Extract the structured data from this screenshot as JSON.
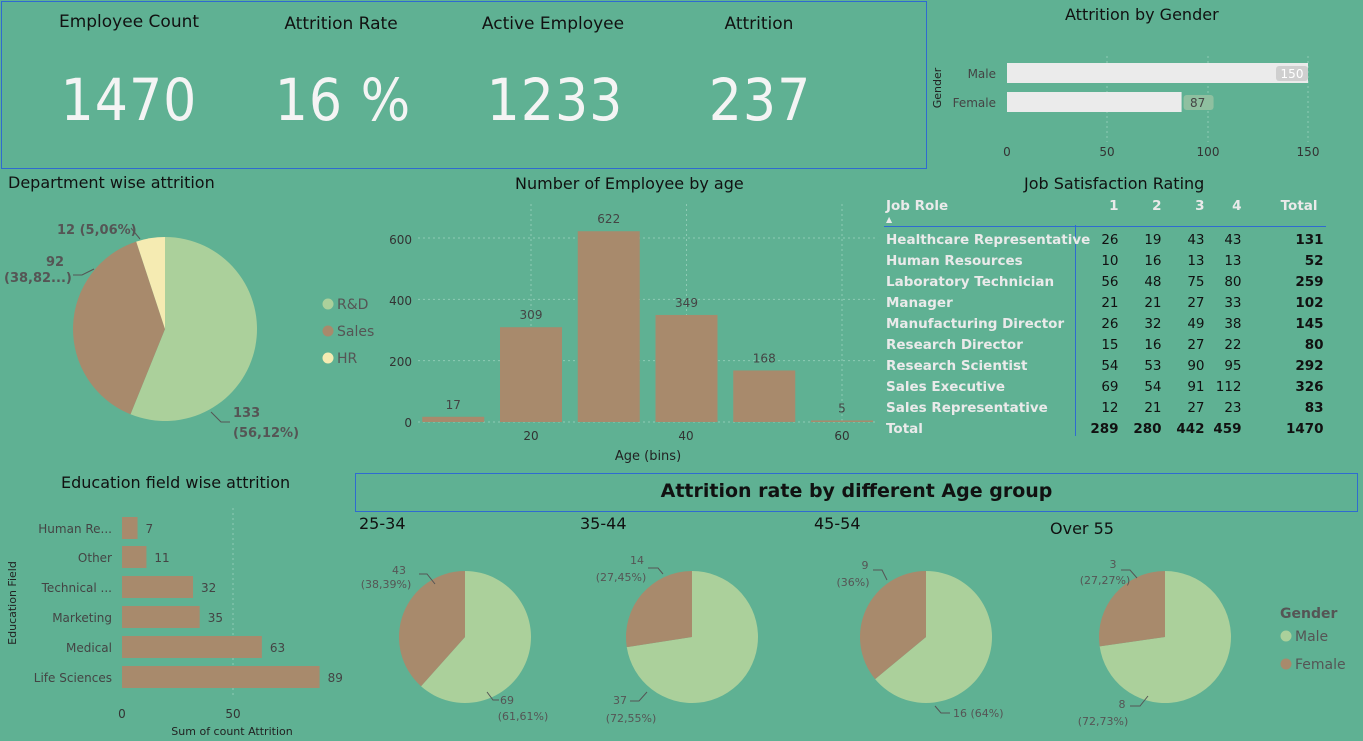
{
  "kpis": [
    {
      "title": "Employee Count",
      "value": "1470"
    },
    {
      "title": "Attrition Rate",
      "value": "16 %"
    },
    {
      "title": "Active Employee",
      "value": "1233"
    },
    {
      "title": "Attrition",
      "value": "237"
    }
  ],
  "colors": {
    "background": "#5fb193",
    "brown": "#a88a6c",
    "green": "#abd09b",
    "yellow": "#f5ebb2",
    "bar_light": "#ebebeb",
    "border": "#2f6bd0"
  },
  "gender_chart": {
    "title": "Attrition by Gender",
    "ylabel": "Gender",
    "ticks": [
      "0",
      "50",
      "100",
      "150"
    ]
  },
  "department_chart": {
    "title": "Department wise attrition",
    "slice_labels": [
      {
        "value": "133",
        "pct": "(56,12%)"
      },
      {
        "value": "92",
        "pct": "(38,82...)"
      },
      {
        "value": "12 (5,06%)",
        "pct": ""
      }
    ],
    "legend": [
      "R&D",
      "Sales",
      "HR"
    ]
  },
  "age_chart": {
    "title": "Number of Employee by age",
    "xlabel": "Age (bins)",
    "yticks": [
      "0",
      "200",
      "400",
      "600"
    ],
    "xticks": [
      "20",
      "40",
      "60"
    ]
  },
  "job_table": {
    "title": "Job Satisfaction Rating",
    "headers": [
      "Job Role",
      "1",
      "2",
      "3",
      "4",
      "Total"
    ],
    "rows": [
      [
        "Healthcare Representative",
        "26",
        "19",
        "43",
        "43",
        "131"
      ],
      [
        "Human Resources",
        "10",
        "16",
        "13",
        "13",
        "52"
      ],
      [
        "Laboratory Technician",
        "56",
        "48",
        "75",
        "80",
        "259"
      ],
      [
        "Manager",
        "21",
        "21",
        "27",
        "33",
        "102"
      ],
      [
        "Manufacturing Director",
        "26",
        "32",
        "49",
        "38",
        "145"
      ],
      [
        "Research Director",
        "15",
        "16",
        "27",
        "22",
        "80"
      ],
      [
        "Research Scientist",
        "54",
        "53",
        "90",
        "95",
        "292"
      ],
      [
        "Sales Executive",
        "69",
        "54",
        "91",
        "112",
        "326"
      ],
      [
        "Sales Representative",
        "12",
        "21",
        "27",
        "23",
        "83"
      ]
    ],
    "total_row": [
      "Total",
      "289",
      "280",
      "442",
      "459",
      "1470"
    ]
  },
  "education_chart": {
    "title": "Education field wise attrition",
    "ylabel": "Education Field",
    "xlabel": "Sum of count Attrition",
    "xticks": [
      "0",
      "50"
    ]
  },
  "age_group_section": {
    "title": "Attrition rate by different Age group",
    "legend_title": "Gender",
    "legend": [
      "Male",
      "Female"
    ],
    "groups": [
      {
        "label": "25-34",
        "female_label": "43",
        "female_pct": "(38,39%)",
        "male_label": "69",
        "male_pct": "(61,61%)"
      },
      {
        "label": "35-44",
        "female_label": "14",
        "female_pct": "(27,45%)",
        "male_label": "37",
        "male_pct": "(72,55%)"
      },
      {
        "label": "45-54",
        "female_label": "9",
        "female_pct": "(36%)",
        "male_label": "16 (64%)",
        "male_pct": ""
      },
      {
        "label": "Over 55",
        "female_label": "3",
        "female_pct": "(27,27%)",
        "male_label": "8",
        "male_pct": "(72,73%)"
      }
    ]
  },
  "chart_data": [
    {
      "type": "bar",
      "title": "Attrition by Gender",
      "ylabel": "Gender",
      "orientation": "horizontal",
      "categories": [
        "Male",
        "Female"
      ],
      "values": [
        150,
        87
      ],
      "xlim": [
        0,
        150
      ]
    },
    {
      "type": "pie",
      "title": "Department wise attrition",
      "categories": [
        "R&D",
        "Sales",
        "HR"
      ],
      "values": [
        133,
        92,
        12
      ],
      "percentages": [
        "56,12%",
        "38,82...",
        "5,06%"
      ],
      "legend_position": "right"
    },
    {
      "type": "bar",
      "title": "Number of Employee by age",
      "xlabel": "Age (bins)",
      "x": [
        10,
        20,
        30,
        40,
        50,
        60
      ],
      "values": [
        17,
        309,
        622,
        349,
        168,
        5
      ],
      "ylim": [
        0,
        650
      ],
      "xlim": [
        7,
        63
      ]
    },
    {
      "type": "table",
      "title": "Job Satisfaction Rating",
      "columns": [
        "Job Role",
        "1",
        "2",
        "3",
        "4",
        "Total"
      ]
    },
    {
      "type": "bar",
      "title": "Education field wise attrition",
      "ylabel": "Education Field",
      "xlabel": "Sum of count Attrition",
      "orientation": "horizontal",
      "categories": [
        "Human Re...",
        "Other",
        "Technical ...",
        "Marketing",
        "Medical",
        "Life Sciences"
      ],
      "values": [
        7,
        11,
        32,
        35,
        63,
        89
      ],
      "xlim": [
        0,
        100
      ]
    },
    {
      "type": "pie",
      "title": "25-34",
      "categories": [
        "Male",
        "Female"
      ],
      "values": [
        69,
        43
      ],
      "percentages": [
        "61,61%",
        "38,39%"
      ]
    },
    {
      "type": "pie",
      "title": "35-44",
      "categories": [
        "Male",
        "Female"
      ],
      "values": [
        37,
        14
      ],
      "percentages": [
        "72,55%",
        "27,45%"
      ]
    },
    {
      "type": "pie",
      "title": "45-54",
      "categories": [
        "Male",
        "Female"
      ],
      "values": [
        16,
        9
      ],
      "percentages": [
        "64%",
        "36%"
      ]
    },
    {
      "type": "pie",
      "title": "Over 55",
      "categories": [
        "Male",
        "Female"
      ],
      "values": [
        8,
        3
      ],
      "percentages": [
        "72,73%",
        "27,27%"
      ]
    }
  ]
}
